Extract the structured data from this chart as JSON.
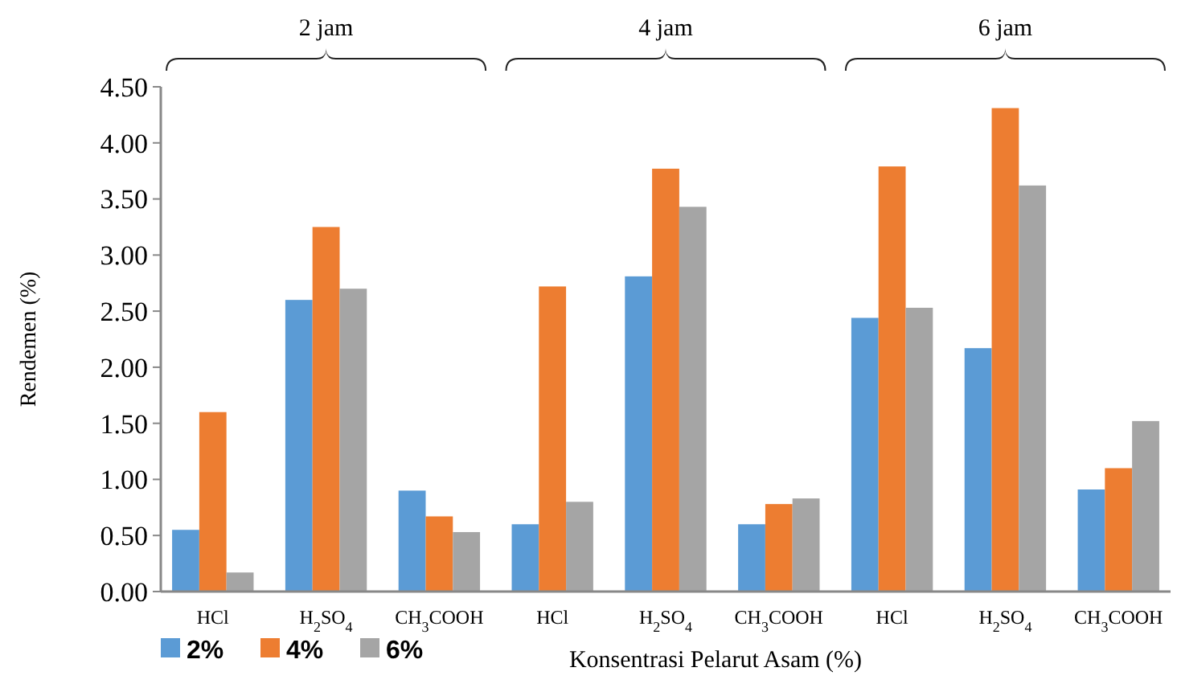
{
  "chart_data": {
    "type": "bar",
    "ylabel": "Rendemen (%)",
    "xlabel": "Konsentrasi Pelarut Asam (%)",
    "annotations": [
      "2 jam",
      "4 jam",
      "6 jam"
    ],
    "categories": [
      "HCl",
      "H$_{2}$SO$_{4}$",
      "CH$_{3}$COOH",
      "HCl",
      "H$_{2}$SO$_{4}$",
      "CH$_{3}$COOH",
      "HCl",
      "H$_{2}$SO$_{4}$",
      "CH$_{3}$COOH"
    ],
    "series": [
      {
        "name": "2%",
        "color": "#5b9bd5",
        "values": [
          0.55,
          2.6,
          0.9,
          0.6,
          2.81,
          0.6,
          2.44,
          2.17,
          0.91
        ]
      },
      {
        "name": "4%",
        "color": "#ed7d31",
        "values": [
          1.6,
          3.25,
          0.67,
          2.72,
          3.77,
          0.78,
          3.79,
          4.31,
          1.1
        ]
      },
      {
        "name": "6%",
        "color": "#a5a5a5",
        "values": [
          0.17,
          2.7,
          0.53,
          0.8,
          3.43,
          0.83,
          2.53,
          3.62,
          1.52
        ]
      }
    ],
    "ylim": [
      0,
      4.5
    ],
    "yticks": [
      {
        "value": 0,
        "label": "0.00"
      },
      {
        "value": 0.5,
        "label": "0.50"
      },
      {
        "value": 1,
        "label": "1.00"
      },
      {
        "value": 1.5,
        "label": "1.50"
      },
      {
        "value": 2,
        "label": "2.00"
      },
      {
        "value": 2.5,
        "label": "2.50"
      },
      {
        "value": 3,
        "label": "3.00"
      },
      {
        "value": 3.5,
        "label": "3.50"
      },
      {
        "value": 4,
        "label": "4.00"
      },
      {
        "value": 4.5,
        "label": "4.50"
      }
    ],
    "grid": false,
    "legend": "bottom left"
  }
}
